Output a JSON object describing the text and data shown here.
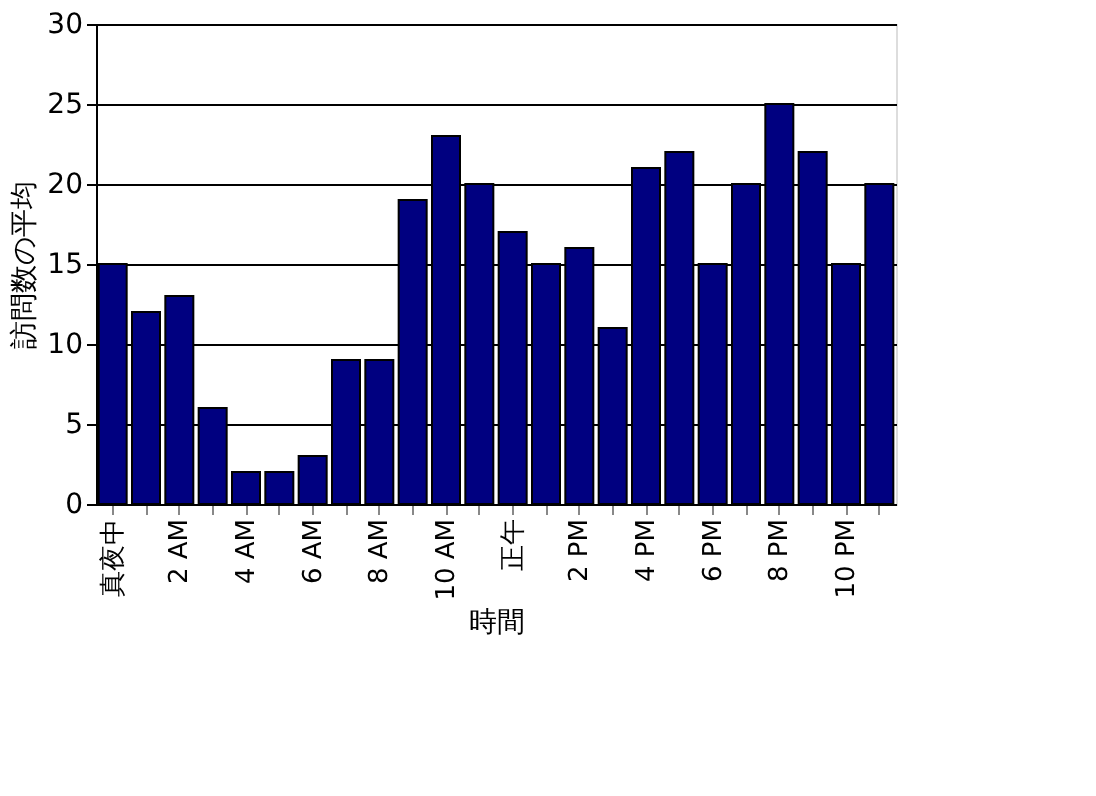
{
  "chart_data": {
    "type": "bar",
    "xlabel": "時間",
    "ylabel": "訪問数の平均",
    "categories": [
      "真夜中",
      null,
      "2 AM",
      null,
      "4 AM",
      null,
      "6 AM",
      null,
      "8 AM",
      null,
      "10 AM",
      null,
      "正午",
      null,
      "2 PM",
      null,
      "4 PM",
      null,
      "6 PM",
      null,
      "8 PM",
      null,
      "10 PM",
      null
    ],
    "values": [
      15,
      12,
      13,
      6,
      2,
      2,
      3,
      9,
      9,
      19,
      23,
      20,
      17,
      15,
      16,
      11,
      21,
      22,
      15,
      20,
      25,
      22,
      15,
      20
    ],
    "color": "#000080",
    "ylim": [
      0,
      30
    ],
    "yticks": [
      0,
      5,
      10,
      15,
      20,
      25,
      30
    ],
    "grid": "y"
  }
}
